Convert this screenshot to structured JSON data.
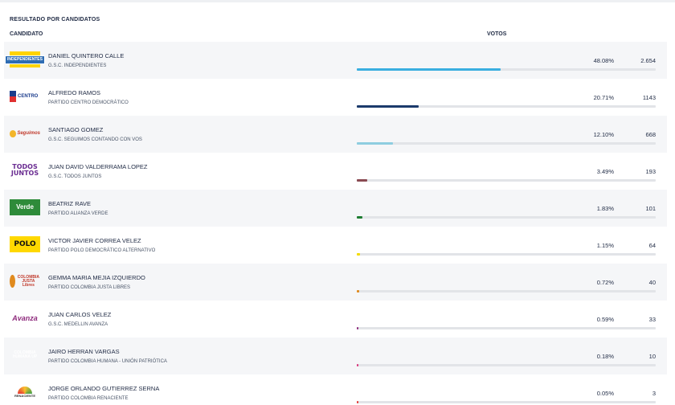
{
  "section_title": "RESULTADO POR CANDIDATOS",
  "columns": {
    "candidate": "CANDIDATO",
    "votes": "VOTOS"
  },
  "candidates": [
    {
      "name": "DANIEL QUINTERO CALLE",
      "party": "G.S.C. INDEPENDIENTES",
      "percent": "48.08%",
      "votes": "2.654",
      "share": 48.08,
      "color": "#3aaee0",
      "logo_text": "INDEPENDIENTES"
    },
    {
      "name": "ALFREDO RAMOS",
      "party": "PARTIDO CENTRO DEMOCRÁTICO",
      "percent": "20.71%",
      "votes": "1143",
      "share": 20.71,
      "color": "#1b3a6b",
      "logo_text": "CENTRO"
    },
    {
      "name": "SANTIAGO GOMEZ",
      "party": "G.S.C. SEGUIMOS CONTANDO CON VOS",
      "percent": "12.10%",
      "votes": "668",
      "share": 12.1,
      "color": "#8ecde0",
      "logo_text": "Seguimos"
    },
    {
      "name": "JUAN DAVID VALDERRAMA LOPEZ",
      "party": "G.S.C. TODOS JUNTOS",
      "percent": "3.49%",
      "votes": "193",
      "share": 3.49,
      "color": "#8a4a52",
      "logo_text": "TODOS JUNTOS"
    },
    {
      "name": "BEATRIZ RAVE",
      "party": "PARTIDO ALIANZA VERDE",
      "percent": "1.83%",
      "votes": "101",
      "share": 1.83,
      "color": "#1e7d32",
      "logo_text": "Verde"
    },
    {
      "name": "VICTOR JAVIER CORREA VELEZ",
      "party": "PARTIDO POLO DEMOCRÁTICO ALTERNATIVO",
      "percent": "1.15%",
      "votes": "64",
      "share": 1.15,
      "color": "#f4dc00",
      "logo_text": "POLO"
    },
    {
      "name": "GEMMA MARIA MEJIA IZQUIERDO",
      "party": "PARTIDO COLOMBIA JUSTA LIBRES",
      "percent": "0.72%",
      "votes": "40",
      "share": 0.72,
      "color": "#e08a1e",
      "logo_text": "COLOMBIA JUSTA Libres"
    },
    {
      "name": "JUAN CARLOS VELEZ",
      "party": "G.S.C. MEDELLIN AVANZA",
      "percent": "0.59%",
      "votes": "33",
      "share": 0.59,
      "color": "#8e2a7c",
      "logo_text": "Avanza"
    },
    {
      "name": "JAIRO HERRAN VARGAS",
      "party": "PARTIDO COLOMBIA HUMANA - UNIÓN PATRIÓTICA",
      "percent": "0.18%",
      "votes": "10",
      "share": 0.18,
      "color": "#d9327a",
      "logo_text": "COLOMBIA HUMANA UP"
    },
    {
      "name": "JORGE ORLANDO GUTIERREZ SERNA",
      "party": "PARTIDO COLOMBIA RENACIENTE",
      "percent": "0.05%",
      "votes": "3",
      "share": 0.05,
      "color": "#e53935",
      "logo_text": "RENACIENTE"
    }
  ]
}
